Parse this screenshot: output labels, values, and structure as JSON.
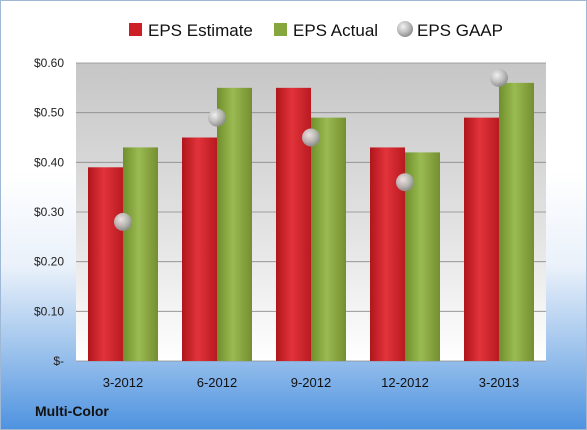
{
  "company": "Multi-Color",
  "colors": {
    "estimate": "#cc1f26",
    "actual": "#86a63e",
    "gaap": "#c9c9c9"
  },
  "chart_data": {
    "type": "bar",
    "categories": [
      "3-2012",
      "6-2012",
      "9-2012",
      "12-2012",
      "3-2013"
    ],
    "series": [
      {
        "name": "EPS Estimate",
        "type": "bar",
        "values": [
          0.39,
          0.45,
          0.55,
          0.43,
          0.49
        ]
      },
      {
        "name": "EPS Actual",
        "type": "bar",
        "values": [
          0.43,
          0.55,
          0.49,
          0.42,
          0.56
        ]
      },
      {
        "name": "EPS GAAP",
        "type": "scatter",
        "values": [
          0.28,
          0.49,
          0.45,
          0.36,
          0.57
        ]
      }
    ],
    "yticks": [
      0,
      0.1,
      0.2,
      0.3,
      0.4,
      0.5,
      0.6
    ],
    "ytick_labels": [
      "$-",
      "$0.10",
      "$0.20",
      "$0.30",
      "$0.40",
      "$0.50",
      "$0.60"
    ],
    "ylim": [
      0,
      0.6
    ],
    "legend_position": "top",
    "grid": true
  }
}
